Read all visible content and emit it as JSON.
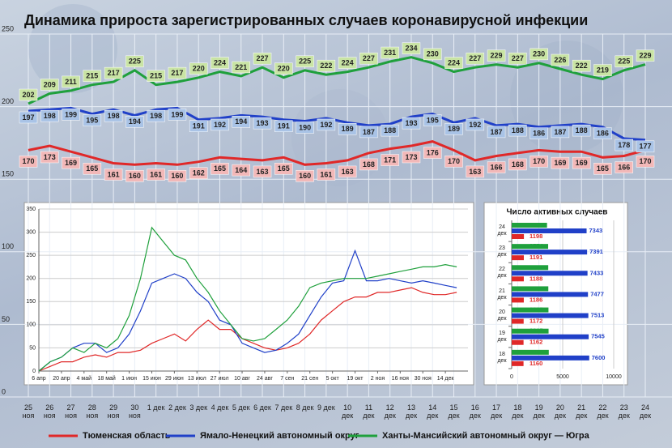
{
  "chart_data": [
    {
      "type": "line",
      "title": "Динамика прироста зарегистрированных случаев коронавирусной инфекции",
      "categories": [
        "25 ноя",
        "26 ноя",
        "27 ноя",
        "28 ноя",
        "29 ноя",
        "30 ноя",
        "1 дек",
        "2 дек",
        "3 дек",
        "4 дек",
        "5 дек",
        "6 дек",
        "7 дек",
        "8 дек",
        "9 дек",
        "10 дек",
        "11 дек",
        "12 дек",
        "13 дек",
        "14 дек",
        "15 дек",
        "16 дек",
        "17 дек",
        "18 дек",
        "19 дек",
        "20 дек",
        "21 дек",
        "22 дек",
        "23 дек",
        "24 дек"
      ],
      "series": [
        {
          "name": "Тюменская область",
          "color": "#e02828",
          "label_color": "#f2b8b8",
          "values": [
            170,
            173,
            169,
            165,
            161,
            160,
            161,
            160,
            162,
            165,
            164,
            163,
            165,
            160,
            161,
            163,
            168,
            171,
            173,
            176,
            170,
            163,
            166,
            168,
            170,
            169,
            169,
            165,
            166,
            170
          ]
        },
        {
          "name": "Ямало-Ненецкий автономный округ",
          "color": "#2040c8",
          "label_color": "#a9c3e6",
          "values": [
            197,
            198,
            199,
            195,
            198,
            194,
            198,
            199,
            191,
            192,
            194,
            193,
            191,
            190,
            192,
            189,
            187,
            188,
            193,
            195,
            189,
            192,
            187,
            188,
            186,
            187,
            188,
            186,
            178,
            177
          ]
        },
        {
          "name": "Ханты-Мансийский автономный округ — Югра",
          "color": "#1fa03c",
          "label_color": "#c9e4a4",
          "values": [
            202,
            209,
            211,
            215,
            217,
            225,
            215,
            217,
            220,
            224,
            221,
            227,
            220,
            225,
            222,
            224,
            227,
            231,
            234,
            230,
            224,
            227,
            229,
            227,
            230,
            226,
            222,
            219,
            225,
            229
          ]
        }
      ],
      "ylim": [
        0,
        250
      ],
      "yticks": [
        0,
        50,
        100,
        150,
        200,
        250
      ],
      "grid": true
    },
    {
      "type": "line",
      "x": [
        0,
        7,
        14,
        21,
        28,
        35,
        42,
        49,
        56,
        63,
        70,
        77,
        84,
        91,
        98,
        105,
        112,
        119,
        126,
        133,
        140,
        147,
        154,
        161,
        168,
        175,
        182,
        189,
        196,
        203,
        210,
        217,
        224,
        231,
        238,
        245,
        252,
        259
      ],
      "series": [
        {
          "color": "#e02828",
          "values": [
            0,
            10,
            20,
            20,
            30,
            35,
            30,
            40,
            40,
            45,
            60,
            70,
            80,
            65,
            90,
            110,
            90,
            90,
            70,
            60,
            50,
            45,
            50,
            60,
            80,
            110,
            130,
            150,
            160,
            160,
            170,
            170,
            175,
            180,
            170,
            165,
            165,
            170
          ]
        },
        {
          "color": "#2040c8",
          "values": [
            0,
            20,
            30,
            50,
            60,
            60,
            40,
            50,
            80,
            130,
            190,
            200,
            210,
            200,
            170,
            150,
            110,
            100,
            60,
            50,
            40,
            45,
            60,
            80,
            120,
            160,
            190,
            195,
            260,
            195,
            195,
            200,
            195,
            190,
            195,
            190,
            185,
            180
          ]
        },
        {
          "color": "#1fa03c",
          "values": [
            0,
            20,
            30,
            50,
            40,
            60,
            50,
            70,
            120,
            200,
            310,
            280,
            250,
            240,
            200,
            170,
            130,
            100,
            70,
            65,
            70,
            90,
            110,
            140,
            180,
            190,
            195,
            200,
            200,
            200,
            205,
            210,
            215,
            220,
            225,
            225,
            230,
            225
          ]
        }
      ],
      "xlim": [
        0,
        266
      ],
      "xticks": [
        {
          "value": 0,
          "label": "6 апр"
        },
        {
          "value": 14,
          "label": "20 апр"
        },
        {
          "value": 28,
          "label": "4 май"
        },
        {
          "value": 42,
          "label": "18 май"
        },
        {
          "value": 56,
          "label": "1 июн"
        },
        {
          "value": 70,
          "label": "15 июн"
        },
        {
          "value": 84,
          "label": "29 июн"
        },
        {
          "value": 98,
          "label": "13 июл"
        },
        {
          "value": 112,
          "label": "27 июл"
        },
        {
          "value": 126,
          "label": "10 авг"
        },
        {
          "value": 140,
          "label": "24 авг"
        },
        {
          "value": 154,
          "label": "7 сен"
        },
        {
          "value": 168,
          "label": "21 сен"
        },
        {
          "value": 182,
          "label": "5 окт"
        },
        {
          "value": 196,
          "label": "19 окт"
        },
        {
          "value": 210,
          "label": "2 ноя"
        },
        {
          "value": 224,
          "label": "16 ноя"
        },
        {
          "value": 238,
          "label": "30 ноя"
        },
        {
          "value": 252,
          "label": "14 дек"
        }
      ],
      "ylim": [
        0,
        350
      ],
      "yticks": [
        0,
        50,
        100,
        150,
        200,
        250,
        300,
        350
      ],
      "grid": true
    },
    {
      "type": "bar",
      "orientation": "horizontal",
      "title": "Число активных случаев",
      "categories": [
        "24 дек",
        "23 дек",
        "22 дек",
        "21 дек",
        "20 дек",
        "19 дек",
        "18 дек"
      ],
      "series": [
        {
          "color": "#1fa03c",
          "values": [
            3464,
            3574,
            3582,
            3590,
            3605,
            3615,
            3635
          ]
        },
        {
          "color": "#2040c8",
          "values": [
            7343,
            7391,
            7433,
            7477,
            7513,
            7545,
            7600
          ]
        },
        {
          "color": "#e02828",
          "values": [
            1198,
            1191,
            1188,
            1186,
            1172,
            1162,
            1160
          ]
        }
      ],
      "xlim": [
        0,
        10000
      ],
      "xticks": [
        0,
        5000,
        10000
      ],
      "grid": true
    }
  ]
}
